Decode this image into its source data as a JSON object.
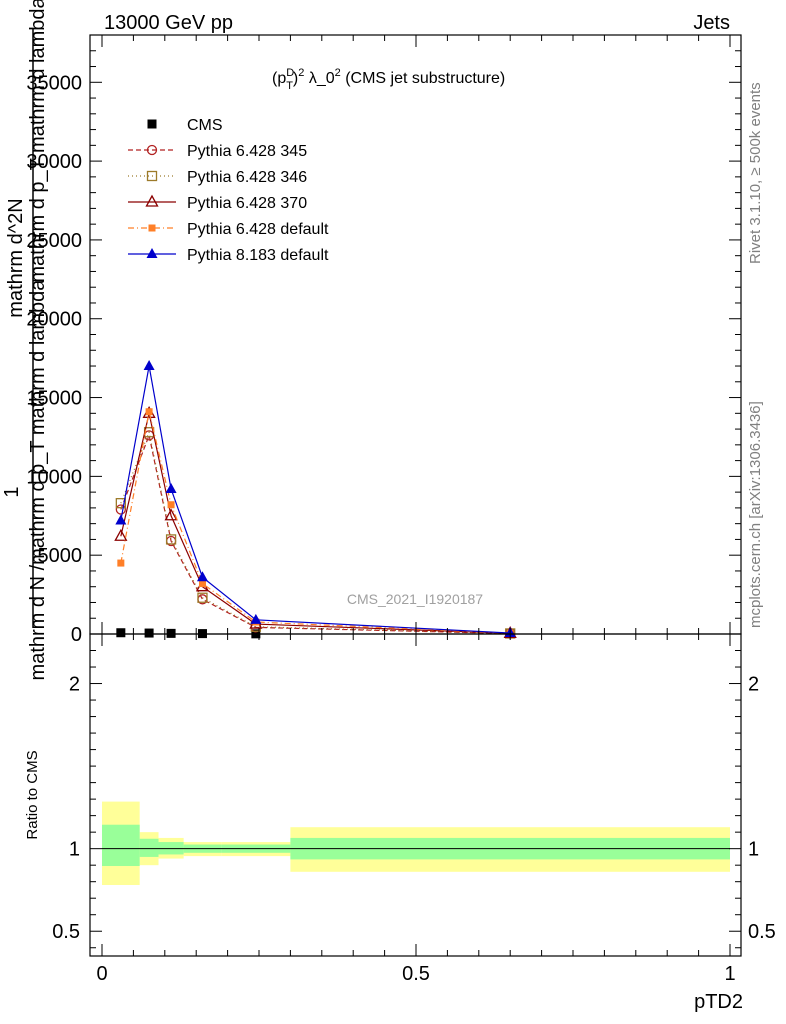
{
  "header": {
    "left": "13000 GeV pp",
    "right": "Jets"
  },
  "side": {
    "rivet": "Rivet 3.1.10, ≥ 500k events",
    "mcplots": "mcplots.cern.ch [arXiv:1306.3436]"
  },
  "chart_data": {
    "type": "line",
    "title": "(p_T^D)^2 λ_0^2 (CMS jet substructure)",
    "title_parts": {
      "open": "(p",
      "sup": "D",
      "sub": "T",
      "close": ")",
      "sup2": "2",
      "rest": " λ_0",
      "sup3": "2",
      "tail": " (CMS jet substructure)"
    },
    "analysis_label": "CMS_2021_I1920187",
    "xlabel": "pTD2",
    "ylabel_main": {
      "one": "1",
      "denominator": "mathrm d N /mathrm d p_T mathrm d lambda",
      "numerator": "mathrm d^2N",
      "numerator_2": "mathrm d p_T mathrm d lambda"
    },
    "ylabel_ratio": "Ratio to CMS",
    "xlim": [
      0,
      1
    ],
    "ylim_main": [
      0,
      38000
    ],
    "ylim_ratio": [
      0.35,
      2.3
    ],
    "x_ticks": [
      {
        "value": 0,
        "label": "0"
      },
      {
        "value": 0.5,
        "label": "0.5"
      },
      {
        "value": 1,
        "label": "1"
      }
    ],
    "y_ticks_main": [
      {
        "value": 0,
        "label": "0"
      },
      {
        "value": 5000,
        "label": "5000"
      },
      {
        "value": 10000,
        "label": "10000"
      },
      {
        "value": 15000,
        "label": "15000"
      },
      {
        "value": 20000,
        "label": "20000"
      },
      {
        "value": 25000,
        "label": "25000"
      },
      {
        "value": 30000,
        "label": "30000"
      },
      {
        "value": 35000,
        "label": "35000"
      }
    ],
    "y_ticks_ratio": [
      {
        "value": 0.5,
        "label": "0.5"
      },
      {
        "value": 1,
        "label": "1"
      },
      {
        "value": 2,
        "label": "2"
      }
    ],
    "x_centers": [
      0.03,
      0.075,
      0.11,
      0.16,
      0.245,
      0.65
    ],
    "bin_edges": [
      0,
      0.06,
      0.09,
      0.13,
      0.19,
      0.3,
      1.0
    ],
    "ratio_bands": {
      "inner": [
        [
          0.895,
          1.145
        ],
        [
          0.95,
          1.06
        ],
        [
          0.965,
          1.04
        ],
        [
          0.975,
          1.025
        ],
        [
          0.975,
          1.025
        ],
        [
          0.935,
          1.065
        ]
      ],
      "outer": [
        [
          0.78,
          1.285
        ],
        [
          0.9,
          1.1
        ],
        [
          0.94,
          1.065
        ],
        [
          0.955,
          1.04
        ],
        [
          0.955,
          1.04
        ],
        [
          0.86,
          1.13
        ]
      ]
    },
    "series": [
      {
        "name": "CMS",
        "color": "#000000",
        "marker": "square",
        "dash": "",
        "values": [
          80,
          60,
          40,
          25,
          10,
          2
        ]
      },
      {
        "name": "Pythia 6.428 345",
        "color": "#b22222",
        "marker": "circle-open",
        "dash": "5,3",
        "values": [
          7900,
          12600,
          5900,
          2200,
          420,
          30
        ]
      },
      {
        "name": "Pythia 6.428 346",
        "color": "#9c7a2a",
        "marker": "square-open",
        "dash": "1,3",
        "values": [
          8300,
          12800,
          6000,
          2300,
          460,
          35
        ]
      },
      {
        "name": "Pythia 6.428 370",
        "color": "#8b0000",
        "marker": "triangle-open",
        "dash": "",
        "values": [
          6200,
          14000,
          7500,
          3000,
          630,
          40
        ]
      },
      {
        "name": "Pythia 6.428 default",
        "color": "#ff7f27",
        "marker": "square-filled",
        "dash": "6,3,1,3",
        "values": [
          4500,
          14100,
          8200,
          3200,
          760,
          50
        ]
      },
      {
        "name": "Pythia 8.183 default",
        "color": "#0000cc",
        "marker": "triangle-filled",
        "dash": "",
        "values": [
          7200,
          17000,
          9200,
          3600,
          900,
          60
        ]
      }
    ]
  }
}
